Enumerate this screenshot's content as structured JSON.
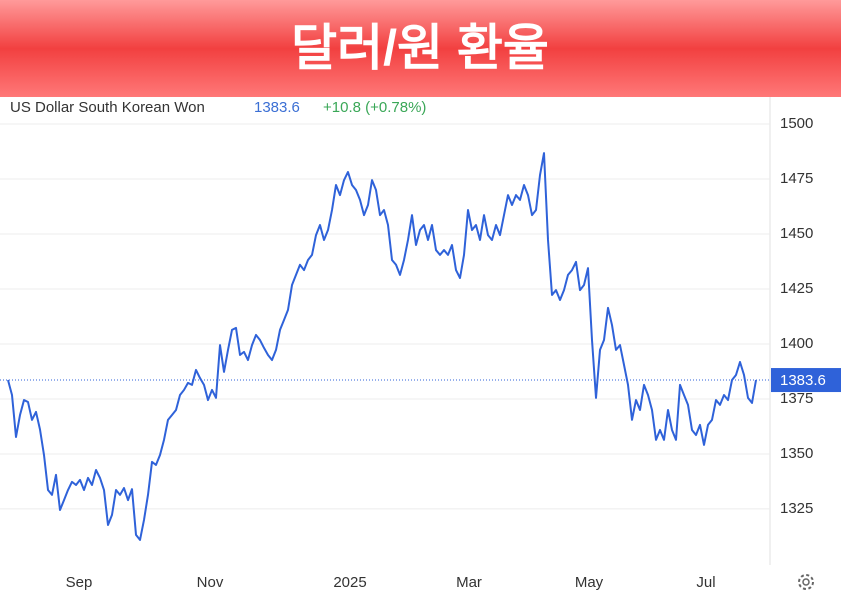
{
  "chart_data": {
    "type": "line",
    "title": "달러/원 환율",
    "instrument": "US Dollar South Korean Won",
    "last_price": 1383.6,
    "change_label": "+10.8 (+0.78%)",
    "series": [
      {
        "name": "US Dollar South Korean Won",
        "color": "#2f62d9",
        "values": [
          1383.6,
          1376.8,
          1357.7,
          1367.7,
          1374.5,
          1373.6,
          1365.5,
          1369.1,
          1361.1,
          1349.5,
          1333.6,
          1331.4,
          1340.5,
          1324.5,
          1329.0,
          1333.6,
          1337.3,
          1335.9,
          1338.2,
          1333.6,
          1339.1,
          1335.9,
          1342.7,
          1339.1,
          1333.6,
          1317.7,
          1322.3,
          1333.6,
          1331.4,
          1334.5,
          1329.0,
          1334.0,
          1313.2,
          1310.9,
          1320.0,
          1331.4,
          1346.4,
          1345.0,
          1349.5,
          1356.4,
          1365.5,
          1367.7,
          1370.0,
          1376.8,
          1379.1,
          1382.3,
          1381.4,
          1388.2,
          1384.5,
          1381.4,
          1374.5,
          1379.1,
          1375.5,
          1399.5,
          1387.3,
          1397.3,
          1406.4,
          1407.3,
          1395.0,
          1396.4,
          1392.7,
          1399.5,
          1404.1,
          1401.8,
          1398.2,
          1395.0,
          1392.7,
          1397.3,
          1406.4,
          1410.9,
          1415.5,
          1426.8,
          1431.4,
          1436.0,
          1433.6,
          1438.2,
          1440.5,
          1449.5,
          1454.1,
          1447.3,
          1451.8,
          1460.9,
          1472.3,
          1467.7,
          1474.5,
          1478.2,
          1472.3,
          1470.0,
          1465.5,
          1458.6,
          1463.2,
          1474.5,
          1470.0,
          1458.6,
          1460.9,
          1454.1,
          1438.2,
          1436.0,
          1431.4,
          1438.2,
          1447.3,
          1458.6,
          1445.0,
          1451.8,
          1454.1,
          1447.3,
          1454.1,
          1442.7,
          1440.5,
          1442.7,
          1440.5,
          1445.0,
          1433.6,
          1430.0,
          1440.5,
          1460.9,
          1451.8,
          1454.1,
          1447.3,
          1458.6,
          1449.5,
          1447.3,
          1454.1,
          1449.5,
          1458.6,
          1467.7,
          1463.2,
          1467.7,
          1465.5,
          1472.3,
          1467.7,
          1458.6,
          1460.9,
          1476.8,
          1486.8,
          1447.3,
          1422.3,
          1424.5,
          1420.0,
          1424.5,
          1431.4,
          1433.6,
          1437.3,
          1424.5,
          1426.8,
          1434.5,
          1401.8,
          1375.5,
          1397.3,
          1401.8,
          1416.4,
          1408.6,
          1397.3,
          1399.5,
          1390.5,
          1381.4,
          1365.5,
          1374.5,
          1370.0,
          1381.4,
          1376.8,
          1370.0,
          1356.4,
          1360.9,
          1356.4,
          1370.0,
          1360.9,
          1356.4,
          1381.4,
          1376.8,
          1372.3,
          1360.9,
          1358.6,
          1363.2,
          1354.1,
          1363.2,
          1365.5,
          1374.5,
          1372.3,
          1376.8,
          1374.5,
          1383.6,
          1385.9,
          1391.8,
          1385.9,
          1375.5,
          1373.2,
          1383.6
        ]
      }
    ],
    "xlim": [
      -2,
      190.5
    ],
    "xticks": [
      {
        "value": 17.75,
        "label": "Sep"
      },
      {
        "value": 50.5,
        "label": "Nov"
      },
      {
        "value": 85.5,
        "label": "2025"
      },
      {
        "value": 115.25,
        "label": "Mar"
      },
      {
        "value": 145.25,
        "label": "May"
      },
      {
        "value": 174.5,
        "label": "Jul"
      }
    ],
    "ylim": [
      1299.5,
      1512.3
    ],
    "yticks": [
      1325,
      1350,
      1375,
      1400,
      1425,
      1450,
      1475,
      1500
    ],
    "grid": true
  }
}
